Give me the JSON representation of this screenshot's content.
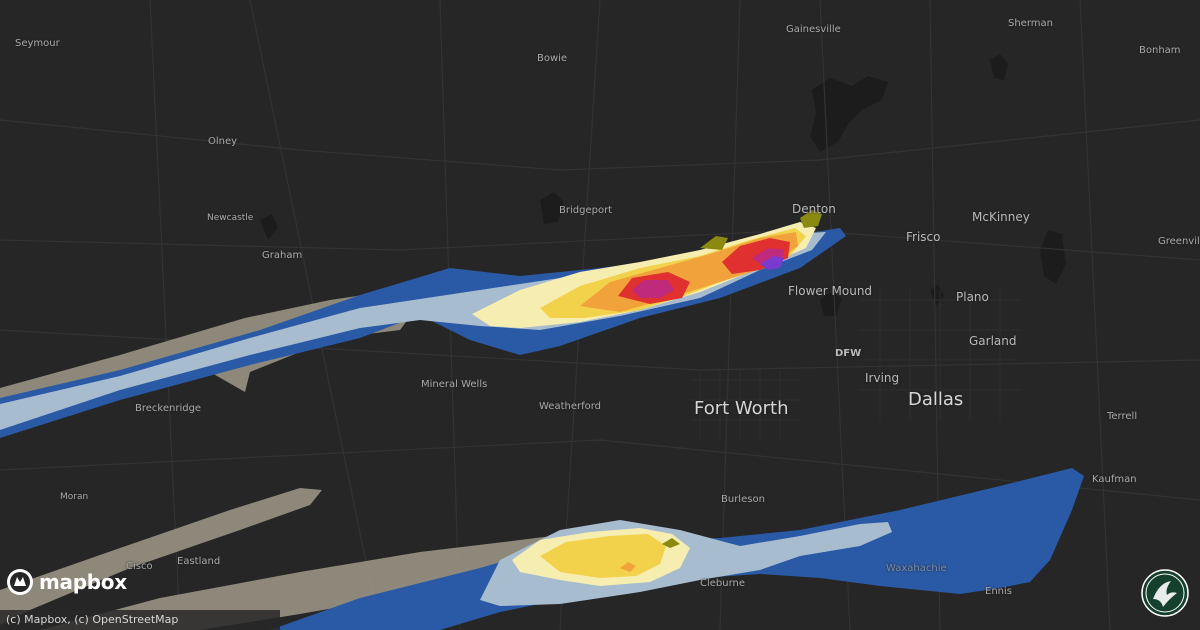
{
  "map": {
    "attribution": "(c) Mapbox, (c) OpenStreetMap",
    "logo_text": "mapbox",
    "logo_icon": "mapbox-logo-icon",
    "badge_icon": "brand-badge-icon",
    "colors": {
      "background": "#262626",
      "swath_gray": "#a09a88",
      "swath_light_blue": "#a8bcd0",
      "swath_blue": "#2a5aa6",
      "swath_pale_yellow": "#f6eeb0",
      "swath_yellow": "#f2d24a",
      "swath_orange": "#f2a23a",
      "swath_red": "#e03030",
      "swath_magenta": "#c02a7c",
      "swath_purple": "#7a3ad0",
      "swath_olive": "#8a8a10"
    }
  },
  "cities": {
    "seymour": "Seymour",
    "bowie": "Bowie",
    "gainesville": "Gainesville",
    "sherman": "Sherman",
    "bonham": "Bonham",
    "olney": "Olney",
    "newcastle": "Newcastle",
    "graham": "Graham",
    "bridgeport": "Bridgeport",
    "denton": "Denton",
    "frisco": "Frisco",
    "mckinney": "McKinney",
    "greenville": "Greenvill",
    "flower_mound": "Flower Mound",
    "plano": "Plano",
    "garland": "Garland",
    "dfw": "DFW",
    "irving": "Irving",
    "breckenridge": "Breckenridge",
    "mineral_wells": "Mineral Wells",
    "weatherford": "Weatherford",
    "fort_worth": "Fort Worth",
    "dallas": "Dallas",
    "terrell": "Terrell",
    "moran": "Moran",
    "burleson": "Burleson",
    "kaufman": "Kaufman",
    "cisco": "Cisco",
    "eastland": "Eastland",
    "waxahachie": "Waxahachie",
    "cleburne": "Cleburne",
    "ennis": "Ennis"
  }
}
